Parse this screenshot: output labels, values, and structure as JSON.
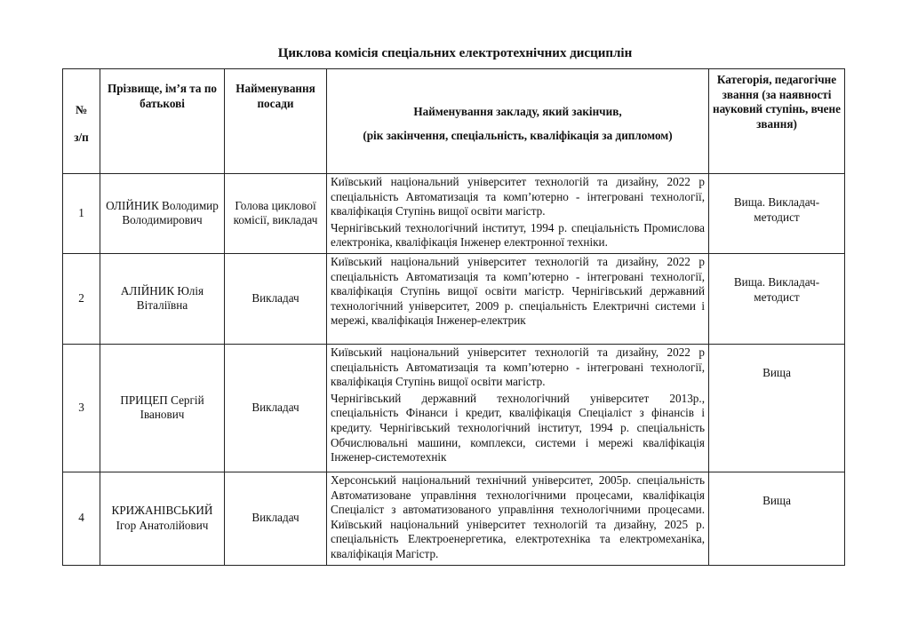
{
  "title": "Циклова комісія спеціальних електротехнічних дисциплін",
  "headers": {
    "num": "№",
    "num_sub": "з/п",
    "name": "Прізвище, ім’я та по батькові",
    "position": "Найменування посади",
    "education": "Найменування закладу, який закінчив,",
    "education_sub": "(рік закінчення, спеціальність, кваліфікація за дипломом)",
    "category": "Категорія, педагогічне звання (за наявності науковий ступінь, вчене звання)"
  },
  "rows": [
    {
      "num": "1",
      "name": "ОЛІЙНИК Володимир Володимирович",
      "position": "Голова циклової комісії, викладач",
      "education": [
        "Київський національний університет технологій та дизайну, 2022 р спеціальність Автоматизація та комп’ютерно - інтегровані технології, кваліфікація Ступінь вищої освіти магістр.",
        "Чернігівський технологічний інститут, 1994 р. спеціальність Промислова електроніка, кваліфікація Інженер електронної техніки."
      ],
      "category": "Вища. Викладач-методист"
    },
    {
      "num": "2",
      "name": "АЛІЙНИК Юлія Віталіївна",
      "position": "Викладач",
      "education": [
        "Київський національний університет технологій та дизайну, 2022 р спеціальність Автоматизація та комп’ютерно - інтегровані технології, кваліфікація Ступінь вищої освіти магістр. Чернігівський державний технологічний університет, 2009 р. спеціальність Електричні системи і мережі, кваліфікація Інженер-електрик"
      ],
      "category": "Вища. Викладач-методист"
    },
    {
      "num": "3",
      "name": "ПРИЦЕП Сергій Іванович",
      "position": "Викладач",
      "education": [
        "Київський національний університет технологій та дизайну, 2022 р спеціальність Автоматизація та комп’ютерно - інтегровані технології, кваліфікація Ступінь вищої освіти магістр.",
        "Чернігівський державний технологічний університет 2013р., спеціальність Фінанси і кредит, кваліфікація Спеціаліст з фінансів і кредиту. Чернігівський технологічний інститут, 1994 р. спеціальність Обчислювальні машини, комплекси, системи і мережі кваліфікація Інженер-системотехнік"
      ],
      "category": "Вища"
    },
    {
      "num": "4",
      "name": "КРИЖАНІВСЬКИЙ Ігор Анатолійович",
      "position": "Викладач",
      "education": [
        "Херсонський національний технічний університет, 2005р. спеціальність Автоматизоване управління технологічними процесами, кваліфікація Спеціаліст з автоматизованого управління технологічними процесами. Київський національний університет технологій та дизайну, 2025 р. спеціальність Електроенергетика, електротехніка та електромеханіка, кваліфікація Магістр."
      ],
      "category": "Вища"
    }
  ]
}
